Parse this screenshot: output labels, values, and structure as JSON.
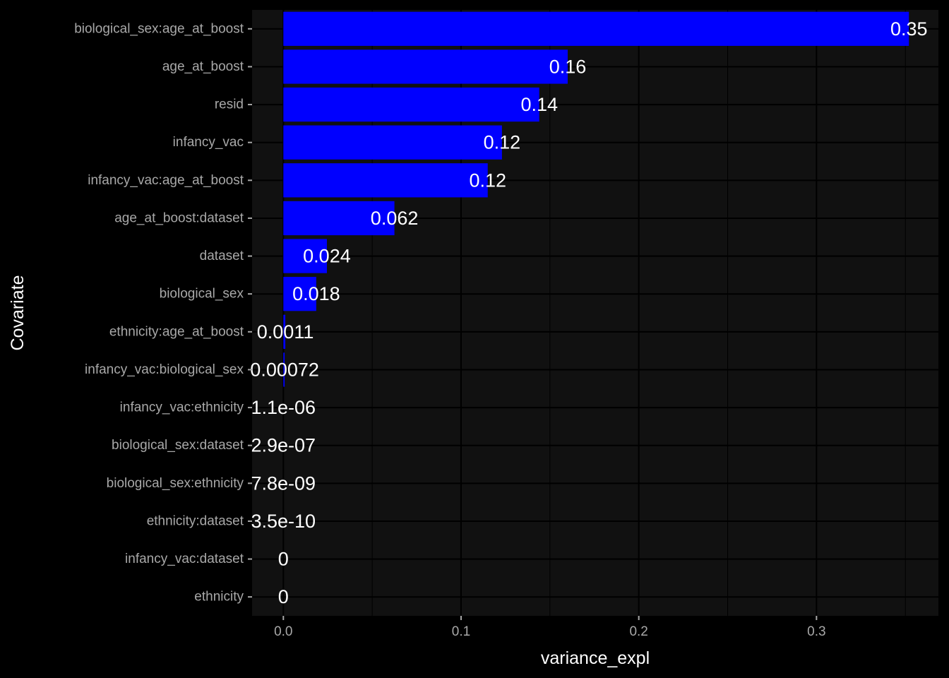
{
  "chart_data": {
    "type": "bar",
    "orientation": "horizontal",
    "xlabel": "variance_expl",
    "ylabel": "Covariate",
    "xlim": [
      -0.0176,
      0.3686
    ],
    "x_ticks": [
      0.0,
      0.1,
      0.2,
      0.3
    ],
    "x_tick_labels": [
      "0.0",
      "0.1",
      "0.2",
      "0.3"
    ],
    "grid": true,
    "bar_color": "#0000ff",
    "panel_color": "#111111",
    "background_color": "#000000",
    "grid_color": "#000000",
    "categories": [
      "biological_sex:age_at_boost",
      "age_at_boost",
      "resid",
      "infancy_vac",
      "infancy_vac:age_at_boost",
      "age_at_boost:dataset",
      "dataset",
      "biological_sex",
      "ethnicity:age_at_boost",
      "infancy_vac:biological_sex",
      "infancy_vac:ethnicity",
      "biological_sex:dataset",
      "biological_sex:ethnicity",
      "ethnicity:dataset",
      "infancy_vac:dataset",
      "ethnicity"
    ],
    "values": [
      0.352,
      0.16,
      0.144,
      0.123,
      0.115,
      0.0625,
      0.0245,
      0.0185,
      0.0011,
      0.00072,
      1.1e-06,
      2.9e-07,
      7.8e-09,
      3.5e-10,
      0,
      0
    ],
    "labels": [
      "0.35",
      "0.16",
      "0.14",
      "0.12",
      "0.12",
      "0.062",
      "0.024",
      "0.018",
      "0.0011",
      "0.00072",
      "1.1e-06",
      "2.9e-07",
      "7.8e-09",
      "3.5e-10",
      "0",
      "0"
    ]
  }
}
